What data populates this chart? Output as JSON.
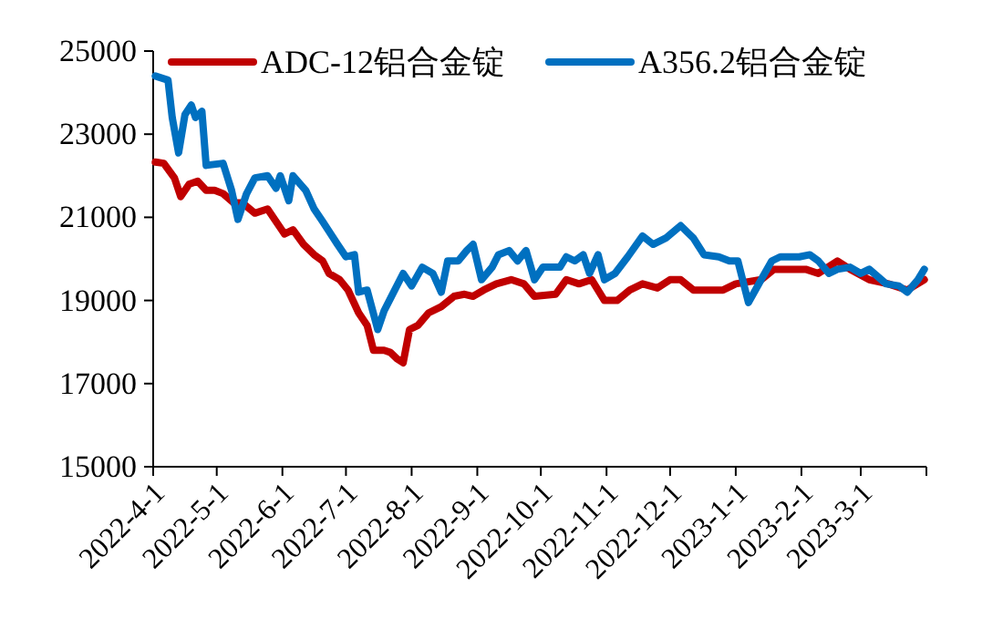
{
  "chart_data": {
    "type": "line",
    "legend": "top",
    "grid": false,
    "xlim": [
      "2022-04-01",
      "2023-04-01"
    ],
    "xticks": [
      {
        "value": "2022-04-01",
        "label": "2022-4-1"
      },
      {
        "value": "2022-05-01",
        "label": "2022-5-1"
      },
      {
        "value": "2022-06-01",
        "label": "2022-6-1"
      },
      {
        "value": "2022-07-01",
        "label": "2022-7-1"
      },
      {
        "value": "2022-08-01",
        "label": "2022-8-1"
      },
      {
        "value": "2022-09-01",
        "label": "2022-9-1"
      },
      {
        "value": "2022-10-01",
        "label": "2022-10-1"
      },
      {
        "value": "2022-11-01",
        "label": "2022-11-1"
      },
      {
        "value": "2022-12-01",
        "label": "2022-12-1"
      },
      {
        "value": "2023-01-01",
        "label": "2023-1-1"
      },
      {
        "value": "2023-02-01",
        "label": "2023-2-1"
      },
      {
        "value": "2023-03-01",
        "label": "2023-3-1"
      },
      {
        "value": "2023-04-01",
        "label": null
      }
    ],
    "ylim": [
      15000,
      25000
    ],
    "yticks": [
      15000,
      17000,
      19000,
      21000,
      23000,
      25000
    ],
    "series": [
      {
        "name": "ADC-12铝合金锭",
        "color": "#c00000",
        "x": [
          "2022-04-02",
          "2022-04-06",
          "2022-04-11",
          "2022-04-14",
          "2022-04-18",
          "2022-04-22",
          "2022-04-26",
          "2022-04-30",
          "2022-05-04",
          "2022-05-09",
          "2022-05-13",
          "2022-05-19",
          "2022-05-25",
          "2022-05-29",
          "2022-06-02",
          "2022-06-06",
          "2022-06-11",
          "2022-06-16",
          "2022-06-20",
          "2022-06-23",
          "2022-06-28",
          "2022-07-02",
          "2022-07-07",
          "2022-07-11",
          "2022-07-14",
          "2022-07-19",
          "2022-07-22",
          "2022-07-25",
          "2022-07-28",
          "2022-07-31",
          "2022-08-04",
          "2022-08-09",
          "2022-08-15",
          "2022-08-21",
          "2022-08-26",
          "2022-08-30",
          "2022-09-04",
          "2022-09-10",
          "2022-09-17",
          "2022-09-23",
          "2022-09-28",
          "2022-10-08",
          "2022-10-13",
          "2022-10-19",
          "2022-10-25",
          "2022-10-31",
          "2022-11-06",
          "2022-11-12",
          "2022-11-18",
          "2022-11-25",
          "2022-12-01",
          "2022-12-06",
          "2022-12-12",
          "2022-12-26",
          "2023-01-01",
          "2023-01-13",
          "2023-01-19",
          "2023-02-03",
          "2023-02-09",
          "2023-02-18",
          "2023-02-24",
          "2023-03-05",
          "2023-03-14",
          "2023-03-23",
          "2023-03-31"
        ],
        "values": [
          22330,
          22300,
          21950,
          21500,
          21800,
          21870,
          21650,
          21650,
          21570,
          21350,
          21350,
          21100,
          21200,
          20900,
          20600,
          20700,
          20350,
          20100,
          19950,
          19650,
          19500,
          19250,
          18700,
          18400,
          17800,
          17800,
          17750,
          17600,
          17500,
          18300,
          18400,
          18700,
          18850,
          19100,
          19150,
          19100,
          19250,
          19400,
          19500,
          19400,
          19100,
          19150,
          19500,
          19400,
          19500,
          19000,
          19000,
          19250,
          19400,
          19300,
          19500,
          19500,
          19250,
          19250,
          19400,
          19500,
          19750,
          19750,
          19650,
          19950,
          19750,
          19500,
          19400,
          19250,
          19500
        ]
      },
      {
        "name": "A356.2铝合金锭",
        "color": "#0070c0",
        "x": [
          "2022-04-02",
          "2022-04-08",
          "2022-04-10",
          "2022-04-13",
          "2022-04-16",
          "2022-04-19",
          "2022-04-21",
          "2022-04-24",
          "2022-04-26",
          "2022-05-04",
          "2022-05-08",
          "2022-05-11",
          "2022-05-15",
          "2022-05-19",
          "2022-05-25",
          "2022-05-29",
          "2022-05-31",
          "2022-06-04",
          "2022-06-06",
          "2022-06-12",
          "2022-06-16",
          "2022-06-20",
          "2022-06-27",
          "2022-07-01",
          "2022-07-05",
          "2022-07-07",
          "2022-07-11",
          "2022-07-16",
          "2022-07-19",
          "2022-07-22",
          "2022-07-28",
          "2022-08-01",
          "2022-08-06",
          "2022-08-11",
          "2022-08-15",
          "2022-08-18",
          "2022-08-23",
          "2022-08-27",
          "2022-08-30",
          "2022-09-03",
          "2022-09-08",
          "2022-09-11",
          "2022-09-16",
          "2022-09-20",
          "2022-09-24",
          "2022-09-28",
          "2022-10-02",
          "2022-10-10",
          "2022-10-13",
          "2022-10-17",
          "2022-10-21",
          "2022-10-24",
          "2022-10-28",
          "2022-10-31",
          "2022-11-05",
          "2022-11-11",
          "2022-11-18",
          "2022-11-23",
          "2022-11-29",
          "2022-12-06",
          "2022-12-12",
          "2022-12-17",
          "2022-12-24",
          "2022-12-29",
          "2023-01-02",
          "2023-01-07",
          "2023-01-13",
          "2023-01-18",
          "2023-01-22",
          "2023-01-31",
          "2023-02-05",
          "2023-02-09",
          "2023-02-14",
          "2023-02-18",
          "2023-02-24",
          "2023-03-01",
          "2023-03-05",
          "2023-03-13",
          "2023-03-19",
          "2023-03-23",
          "2023-03-28",
          "2023-03-31"
        ],
        "values": [
          24400,
          24300,
          23400,
          22550,
          23470,
          23700,
          23400,
          23550,
          22250,
          22300,
          21650,
          20950,
          21560,
          21950,
          22000,
          21700,
          22000,
          21400,
          22000,
          21650,
          21200,
          20900,
          20350,
          20050,
          20100,
          19200,
          19250,
          18300,
          18750,
          19050,
          19650,
          19350,
          19800,
          19650,
          19200,
          19950,
          19950,
          20200,
          20350,
          19500,
          19800,
          20100,
          20200,
          19950,
          20200,
          19500,
          19800,
          19800,
          20050,
          19950,
          20100,
          19650,
          20100,
          19500,
          19650,
          20050,
          20550,
          20350,
          20500,
          20800,
          20500,
          20100,
          20050,
          19950,
          19950,
          18950,
          19500,
          19950,
          20050,
          20050,
          20100,
          19950,
          19650,
          19750,
          19800,
          19650,
          19750,
          19400,
          19350,
          19200,
          19500,
          19750
        ]
      }
    ]
  }
}
